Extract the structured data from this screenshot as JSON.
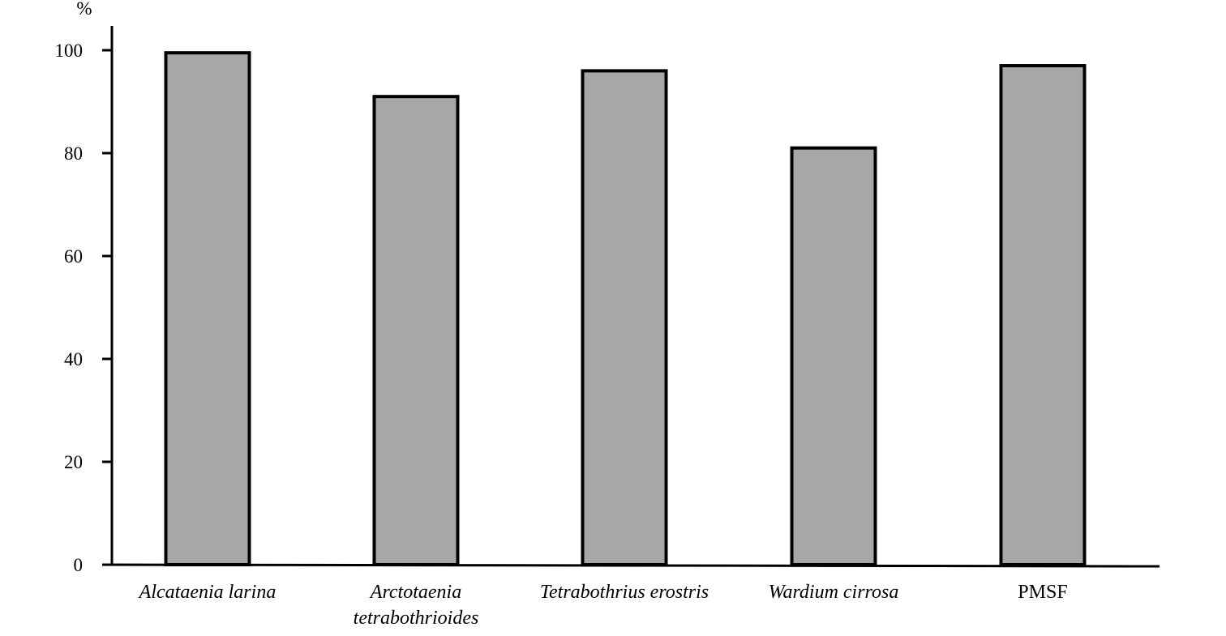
{
  "chart_data": {
    "type": "bar",
    "ylabel": "%",
    "ylim": [
      0,
      100
    ],
    "yticks": [
      0,
      20,
      40,
      60,
      80,
      100
    ],
    "categories": [
      {
        "label": "Alcataenia larina",
        "lines": [
          "Alcataenia larina"
        ],
        "italic": true
      },
      {
        "label": "Arctotaenia tetrabothrioides",
        "lines": [
          "Arctotaenia",
          "tetrabothrioides"
        ],
        "italic": true
      },
      {
        "label": "Tetrabothrius erostris",
        "lines": [
          "Tetrabothrius erostris"
        ],
        "italic": true
      },
      {
        "label": "Wardium cirrosa",
        "lines": [
          "Wardium cirrosa"
        ],
        "italic": true
      },
      {
        "label": "PMSF",
        "lines": [
          "PMSF"
        ],
        "italic": false
      }
    ],
    "values": [
      99.5,
      91,
      96,
      81,
      97
    ],
    "bar_color": "#a6a7a9",
    "bar_edge_color": "#000000",
    "grid": false,
    "legend": "none"
  }
}
